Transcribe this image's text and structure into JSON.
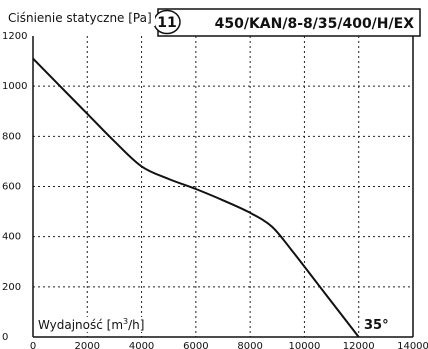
{
  "chart_data": {
    "type": "line",
    "badge": "11",
    "model": "450/KAN/8-8/35/400/H/EX",
    "ylabel": "Ciśnienie statyczne [Pa]",
    "xlabel_main": "Wydajność [m",
    "xlabel_sup": "3",
    "xlabel_end": "/h]",
    "angle_label": "35°",
    "xlim": [
      0,
      14000
    ],
    "ylim": [
      0,
      1200
    ],
    "grid": true,
    "x_ticks": [
      0,
      2000,
      4000,
      6000,
      8000,
      10000,
      12000,
      14000
    ],
    "y_ticks": [
      0,
      200,
      400,
      600,
      800,
      1000,
      1200
    ],
    "series": [
      {
        "x": [
          0,
          1000,
          2000,
          3000,
          4000,
          5000,
          6000,
          7000,
          8000,
          8800,
          9500,
          10500,
          11500,
          12000
        ],
        "y": [
          1110,
          1000,
          890,
          780,
          680,
          630,
          590,
          545,
          495,
          440,
          350,
          210,
          70,
          0
        ]
      }
    ]
  }
}
